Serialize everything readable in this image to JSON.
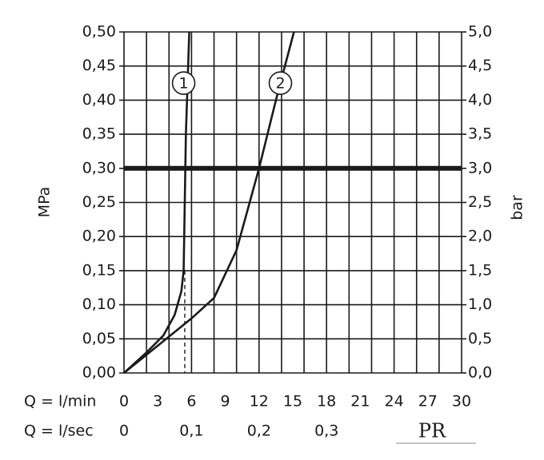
{
  "chart_data": {
    "type": "line",
    "ylabel": "MPa",
    "y2label": "bar",
    "xlabel": "Q = l/min",
    "x2label": "Q = l/sec",
    "logo": "PR",
    "xlim": [
      0,
      30
    ],
    "xticks": [
      0,
      3,
      6,
      9,
      12,
      15,
      18,
      21,
      24,
      27,
      30
    ],
    "x_grid": [
      0,
      2,
      4,
      6,
      8,
      10,
      12,
      14,
      16,
      18,
      20,
      22,
      24,
      26,
      28,
      30
    ],
    "x2lim": [
      0,
      0.5
    ],
    "x2ticks": [
      0,
      {
        "value": 0.1,
        "label": "0,1"
      },
      {
        "value": 0.2,
        "label": "0,2"
      },
      {
        "value": 0.3,
        "label": "0,3"
      }
    ],
    "ylim": [
      0,
      0.5
    ],
    "yticks": [
      {
        "value": 0,
        "label": "0,00"
      },
      {
        "value": 0.05,
        "label": "0,05"
      },
      {
        "value": 0.1,
        "label": "0,10"
      },
      {
        "value": 0.15,
        "label": "0,15"
      },
      {
        "value": 0.2,
        "label": "0,20"
      },
      {
        "value": 0.25,
        "label": "0,25"
      },
      {
        "value": 0.3,
        "label": "0,30"
      },
      {
        "value": 0.35,
        "label": "0,35"
      },
      {
        "value": 0.4,
        "label": "0,40"
      },
      {
        "value": 0.45,
        "label": "0,45"
      },
      {
        "value": 0.5,
        "label": "0,50"
      }
    ],
    "y2lim": [
      0,
      5
    ],
    "y2ticks": [
      {
        "value": 0,
        "label": "0,0"
      },
      {
        "value": 0.5,
        "label": "0,5"
      },
      {
        "value": 1,
        "label": "1,0"
      },
      {
        "value": 1.5,
        "label": "1,5"
      },
      {
        "value": 2,
        "label": "2,0"
      },
      {
        "value": 2.5,
        "label": "2,5"
      },
      {
        "value": 3,
        "label": "3,0"
      },
      {
        "value": 3.5,
        "label": "3,5"
      },
      {
        "value": 4,
        "label": "4,0"
      },
      {
        "value": 4.5,
        "label": "4,5"
      },
      {
        "value": 5,
        "label": "5,0"
      }
    ],
    "threshold": 0.3,
    "markers": [
      {
        "x": 5.4,
        "y": 0.15
      },
      {
        "x": 12,
        "y": 0.3
      }
    ],
    "series": [
      {
        "name": "1",
        "color": "#1a1a1a",
        "label_at": [
          5.3,
          0.425
        ],
        "x": [
          0,
          2,
          3.5,
          4.5,
          5.1,
          5.3,
          5.4,
          5.5,
          5.8
        ],
        "values": [
          0,
          0.03,
          0.055,
          0.085,
          0.12,
          0.15,
          0.25,
          0.35,
          0.5
        ]
      },
      {
        "name": "2",
        "color": "#1a1a1a",
        "label_at": [
          13.9,
          0.425
        ],
        "x": [
          0,
          3,
          6,
          8,
          10,
          12,
          13.5,
          15.1
        ],
        "values": [
          0,
          0.04,
          0.08,
          0.11,
          0.18,
          0.3,
          0.4,
          0.5
        ]
      }
    ]
  }
}
